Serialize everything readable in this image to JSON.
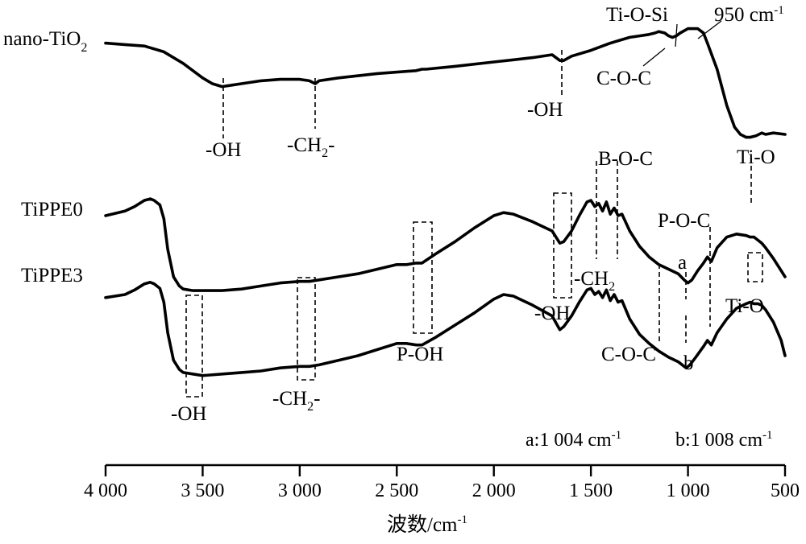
{
  "chart_data": {
    "type": "line",
    "title": "",
    "xlabel_main": "波数",
    "xlabel_unit": "/cm",
    "xlabel_exp": "-1",
    "xlim": [
      4000,
      500
    ],
    "x_reversed": true,
    "y_axis_shown": false,
    "grid": false,
    "tick_values": [
      4000,
      3500,
      3000,
      2500,
      2000,
      1500,
      1000,
      500
    ],
    "tick_labels": [
      "4 000",
      "3 500",
      "3 000",
      "2 500",
      "2 000",
      "1 500",
      "1 000",
      "500"
    ],
    "series": [
      {
        "name_main": "nano-TiO",
        "name_sub": "2",
        "x": [
          4000,
          3900,
          3800,
          3700,
          3600,
          3500,
          3450,
          3400,
          3350,
          3300,
          3200,
          3100,
          3000,
          2950,
          2920,
          2900,
          2800,
          2600,
          2400,
          2370,
          2350,
          2200,
          2000,
          1800,
          1700,
          1660,
          1640,
          1600,
          1500,
          1400,
          1300,
          1250,
          1200,
          1170,
          1150,
          1120,
          1100,
          1080,
          1060,
          1040,
          1000,
          950,
          920,
          900,
          850,
          800,
          760,
          730,
          700,
          680,
          650,
          620,
          600,
          560,
          500
        ],
        "y": [
          0.98,
          0.97,
          0.96,
          0.92,
          0.84,
          0.74,
          0.7,
          0.68,
          0.69,
          0.7,
          0.72,
          0.73,
          0.73,
          0.72,
          0.7,
          0.72,
          0.74,
          0.77,
          0.79,
          0.8,
          0.8,
          0.82,
          0.85,
          0.88,
          0.9,
          0.86,
          0.86,
          0.89,
          0.93,
          0.98,
          1.02,
          1.03,
          1.04,
          1.05,
          1.06,
          1.05,
          1.03,
          1.02,
          1.03,
          1.05,
          1.08,
          1.08,
          1.05,
          0.98,
          0.8,
          0.55,
          0.4,
          0.35,
          0.33,
          0.33,
          0.34,
          0.36,
          0.35,
          0.36,
          0.35
        ]
      },
      {
        "name_main": "TiPPE0",
        "x": [
          4000,
          3900,
          3850,
          3800,
          3770,
          3750,
          3720,
          3700,
          3680,
          3650,
          3620,
          3600,
          3550,
          3500,
          3400,
          3300,
          3200,
          3100,
          3000,
          2950,
          2900,
          2800,
          2700,
          2600,
          2500,
          2450,
          2400,
          2370,
          2300,
          2200,
          2100,
          2000,
          1950,
          1900,
          1800,
          1700,
          1660,
          1640,
          1600,
          1560,
          1520,
          1500,
          1480,
          1460,
          1440,
          1420,
          1400,
          1380,
          1360,
          1340,
          1300,
          1250,
          1200,
          1150,
          1100,
          1050,
          1020,
          1000,
          980,
          950,
          920,
          900,
          880,
          850,
          800,
          750,
          700,
          680,
          660,
          640,
          620,
          600,
          560,
          520,
          500
        ],
        "y": [
          0.3,
          0.33,
          0.36,
          0.4,
          0.41,
          0.4,
          0.37,
          0.28,
          0.08,
          -0.1,
          -0.16,
          -0.18,
          -0.19,
          -0.19,
          -0.19,
          -0.18,
          -0.16,
          -0.14,
          -0.13,
          -0.13,
          -0.12,
          -0.1,
          -0.08,
          -0.05,
          -0.02,
          -0.02,
          -0.01,
          -0.01,
          0.05,
          0.13,
          0.22,
          0.3,
          0.32,
          0.31,
          0.26,
          0.2,
          0.12,
          0.13,
          0.2,
          0.3,
          0.39,
          0.4,
          0.36,
          0.38,
          0.33,
          0.39,
          0.31,
          0.35,
          0.3,
          0.31,
          0.2,
          0.1,
          0.03,
          -0.02,
          -0.05,
          -0.08,
          -0.12,
          -0.14,
          -0.12,
          -0.06,
          -0.01,
          0.03,
          0.0,
          0.09,
          0.16,
          0.18,
          0.17,
          0.16,
          0.16,
          0.14,
          0.12,
          0.09,
          0.02,
          -0.06,
          -0.1
        ]
      },
      {
        "name_main": "TiPPE3",
        "x": [
          4000,
          3900,
          3850,
          3800,
          3770,
          3750,
          3720,
          3700,
          3680,
          3650,
          3620,
          3600,
          3550,
          3500,
          3400,
          3300,
          3200,
          3100,
          3000,
          2950,
          2900,
          2800,
          2700,
          2600,
          2500,
          2450,
          2400,
          2370,
          2300,
          2200,
          2100,
          2000,
          1950,
          1900,
          1800,
          1700,
          1660,
          1640,
          1600,
          1560,
          1520,
          1500,
          1480,
          1460,
          1440,
          1420,
          1400,
          1380,
          1360,
          1340,
          1300,
          1250,
          1200,
          1150,
          1100,
          1050,
          1020,
          1008,
          990,
          960,
          920,
          900,
          880,
          850,
          800,
          750,
          700,
          680,
          660,
          640,
          620,
          600,
          560,
          520,
          500
        ],
        "y": [
          0.08,
          0.1,
          0.13,
          0.17,
          0.18,
          0.17,
          0.14,
          0.05,
          -0.15,
          -0.33,
          -0.39,
          -0.41,
          -0.42,
          -0.43,
          -0.42,
          -0.41,
          -0.4,
          -0.38,
          -0.37,
          -0.37,
          -0.36,
          -0.33,
          -0.3,
          -0.26,
          -0.22,
          -0.22,
          -0.23,
          -0.23,
          -0.18,
          -0.1,
          -0.02,
          0.07,
          0.1,
          0.09,
          0.03,
          -0.04,
          -0.13,
          -0.11,
          -0.04,
          0.05,
          0.13,
          0.14,
          0.1,
          0.12,
          0.08,
          0.13,
          0.06,
          0.1,
          0.05,
          0.06,
          -0.06,
          -0.16,
          -0.22,
          -0.27,
          -0.31,
          -0.34,
          -0.37,
          -0.38,
          -0.36,
          -0.31,
          -0.24,
          -0.2,
          -0.23,
          -0.15,
          -0.06,
          0.01,
          0.04,
          0.05,
          0.04,
          0.04,
          0.03,
          0.0,
          -0.08,
          -0.2,
          -0.3
        ]
      }
    ],
    "annotations": {
      "oh_1": "-OH",
      "ch2_1_main": "-CH",
      "ch2_1_sub": "2",
      "ch2_1_end": "-",
      "oh_2": "-OH",
      "tiosi": "Ti-O-Si",
      "coc_1": "C-O-C",
      "wn950": "950 cm",
      "wn950_exp": "-1",
      "tio_1": "Ti-O",
      "boc": "B-O-C",
      "poc": "P-O-C",
      "mark_a": "a",
      "poh": "P-OH",
      "ch2_2_main": "-CH",
      "ch2_2_sub": "2",
      "oh_3": "-OH",
      "tio_2": "Ti-O",
      "coc_2": "C-O-C",
      "mark_b": "b",
      "oh_4": "-OH",
      "ch2_3_main": "-CH",
      "ch2_3_sub": "2",
      "ch2_3_end": "-",
      "note_a": "a:1 004 cm",
      "note_a_exp": "-1",
      "note_b": "b:1 008 cm",
      "note_b_exp": "-1"
    }
  }
}
